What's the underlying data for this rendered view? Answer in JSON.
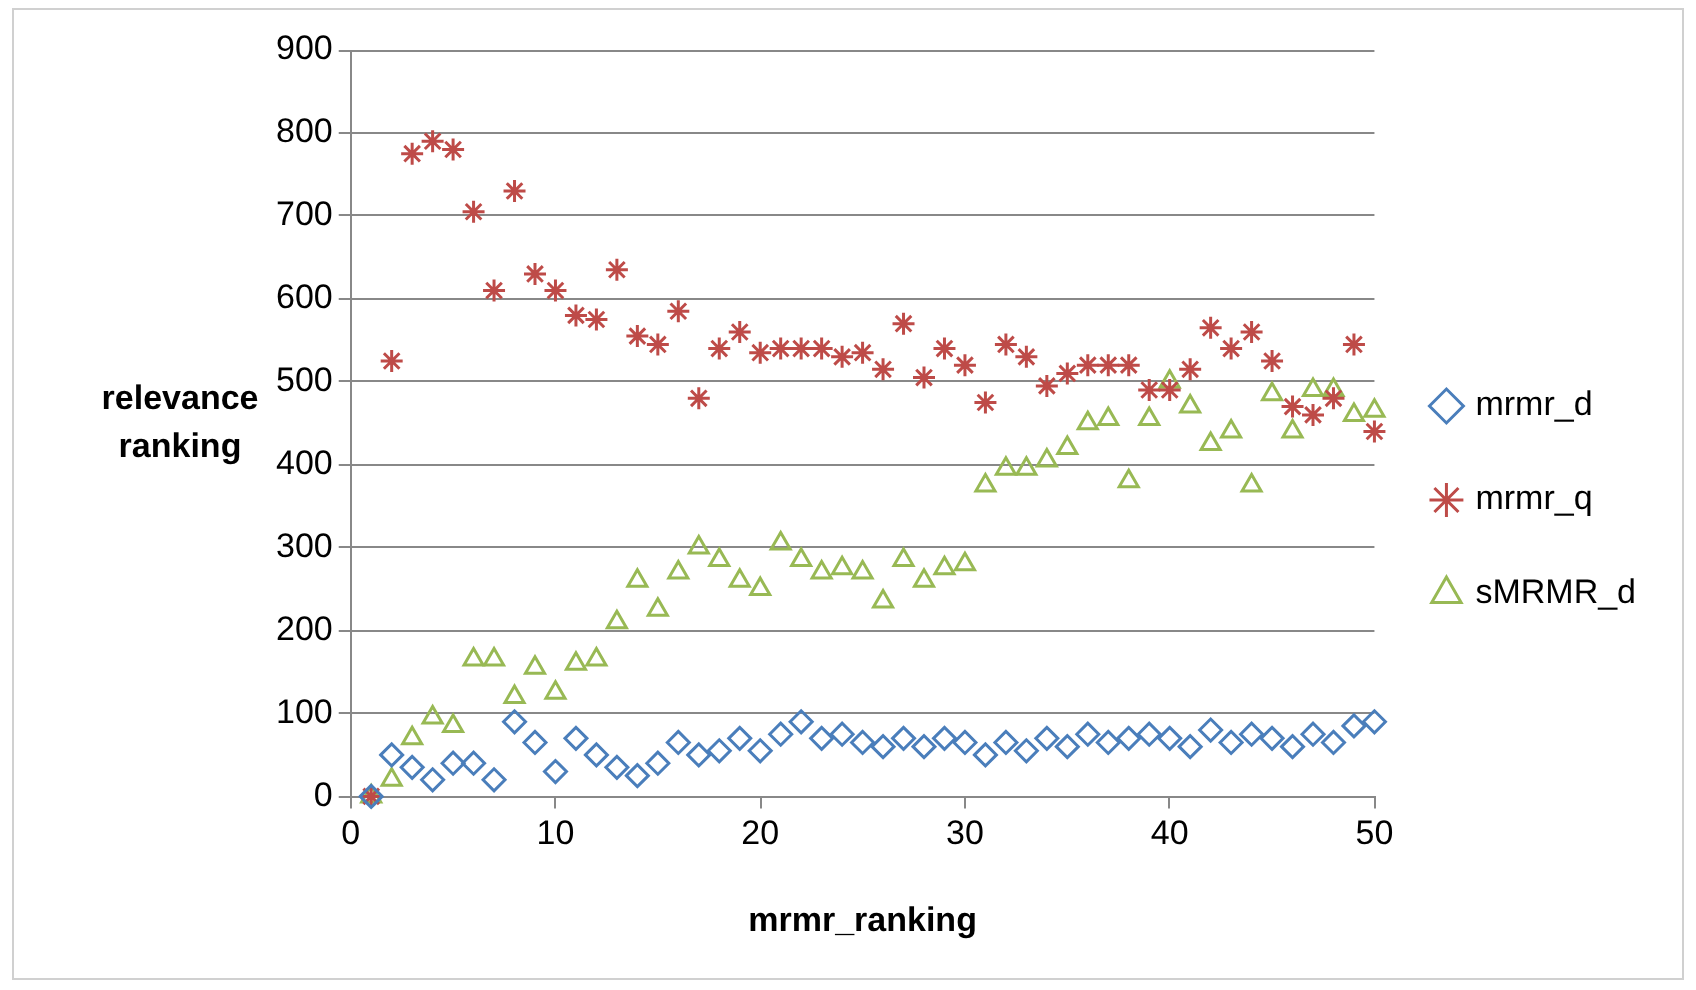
{
  "chart_data": {
    "type": "scatter",
    "xlabel": "mrmr_ranking",
    "ylabel": "relevance ranking",
    "series": [
      {
        "name": "mrmr_d",
        "color": "#4a7ebb",
        "marker": "diamond",
        "x": [
          1,
          2,
          3,
          4,
          5,
          6,
          7,
          8,
          9,
          10,
          11,
          12,
          13,
          14,
          15,
          16,
          17,
          18,
          19,
          20,
          21,
          22,
          23,
          24,
          25,
          26,
          27,
          28,
          29,
          30,
          31,
          32,
          33,
          34,
          35,
          36,
          37,
          38,
          39,
          40,
          41,
          42,
          43,
          44,
          45,
          46,
          47,
          48,
          49,
          50
        ],
        "values": [
          0,
          50,
          35,
          20,
          40,
          40,
          20,
          90,
          65,
          30,
          70,
          50,
          35,
          25,
          40,
          65,
          50,
          55,
          70,
          55,
          75,
          90,
          70,
          75,
          65,
          60,
          70,
          60,
          70,
          65,
          50,
          65,
          55,
          70,
          60,
          75,
          65,
          70,
          75,
          70,
          60,
          80,
          65,
          75,
          70,
          60,
          75,
          65,
          85,
          90
        ]
      },
      {
        "name": "mrmr_q",
        "color": "#be4b48",
        "marker": "cross",
        "x": [
          1,
          2,
          3,
          4,
          5,
          6,
          7,
          8,
          9,
          10,
          11,
          12,
          13,
          14,
          15,
          16,
          17,
          18,
          19,
          20,
          21,
          22,
          23,
          24,
          25,
          26,
          27,
          28,
          29,
          30,
          31,
          32,
          33,
          34,
          35,
          36,
          37,
          38,
          39,
          40,
          41,
          42,
          43,
          44,
          45,
          46,
          47,
          48,
          49,
          50
        ],
        "values": [
          0,
          525,
          775,
          790,
          780,
          705,
          610,
          730,
          630,
          610,
          580,
          575,
          635,
          555,
          545,
          585,
          480,
          540,
          560,
          535,
          540,
          540,
          540,
          530,
          535,
          515,
          570,
          505,
          540,
          520,
          475,
          545,
          530,
          495,
          510,
          520,
          520,
          520,
          490,
          490,
          515,
          565,
          540,
          560,
          525,
          470,
          460,
          480,
          545,
          440
        ]
      },
      {
        "name": "sMRMR_d",
        "color": "#98b954",
        "marker": "triangle",
        "x": [
          1,
          2,
          3,
          4,
          5,
          6,
          7,
          8,
          9,
          10,
          11,
          12,
          13,
          14,
          15,
          16,
          17,
          18,
          19,
          20,
          21,
          22,
          23,
          24,
          25,
          26,
          27,
          28,
          29,
          30,
          31,
          32,
          33,
          34,
          35,
          36,
          37,
          38,
          39,
          40,
          41,
          42,
          43,
          44,
          45,
          46,
          47,
          48,
          49,
          50
        ],
        "values": [
          0,
          20,
          70,
          95,
          85,
          165,
          165,
          120,
          155,
          125,
          160,
          165,
          210,
          260,
          225,
          270,
          300,
          285,
          260,
          250,
          305,
          285,
          270,
          275,
          270,
          235,
          285,
          260,
          275,
          280,
          375,
          395,
          395,
          405,
          420,
          450,
          455,
          380,
          455,
          500,
          470,
          425,
          440,
          375,
          485,
          440,
          490,
          490,
          460,
          465
        ]
      }
    ],
    "xlim": [
      0,
      50
    ],
    "xticks": [
      0,
      10,
      20,
      30,
      40,
      50
    ],
    "ylim": [
      0,
      900
    ],
    "yticks": [
      0,
      100,
      200,
      300,
      400,
      500,
      600,
      700,
      800,
      900
    ],
    "grid": "y",
    "legend": "right"
  }
}
